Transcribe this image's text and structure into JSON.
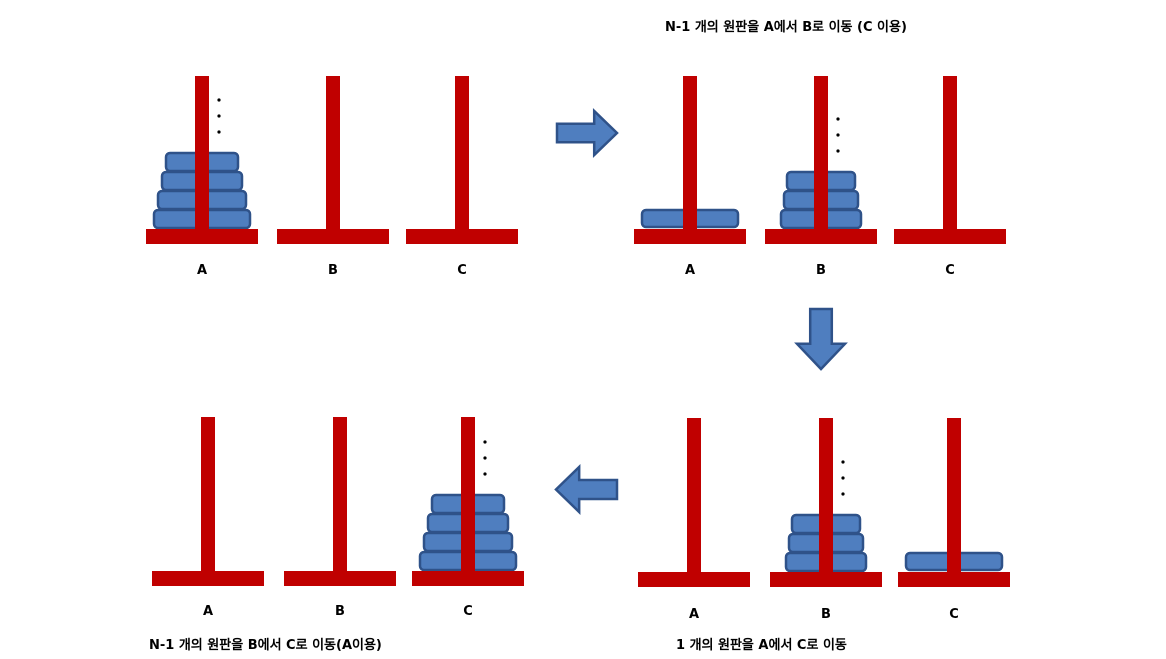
{
  "captions": {
    "top_right": "N-1 개의 원판을 A에서 B로 이동 (C 이용)",
    "bottom_left": "N-1 개의 원판을 B에서 C로 이동(A이용)",
    "bottom_right": "1 개의 원판을 A에서 C로 이동"
  },
  "peg_labels": [
    "A",
    "B",
    "C"
  ],
  "colors": {
    "peg": "#c00000",
    "disk_fill": "#4f7ebf",
    "disk_stroke": "#2f5289",
    "arrow_fill": "#4f7ebf",
    "arrow_stroke": "#2f5289"
  },
  "continuation_mark": "⋮",
  "panels": [
    {
      "id": "initial",
      "stacks": {
        "A": {
          "tower": 4,
          "single": false
        },
        "B": {
          "tower": 0,
          "single": false
        },
        "C": {
          "tower": 0,
          "single": false
        }
      }
    },
    {
      "id": "step1",
      "stacks": {
        "A": {
          "tower": 0,
          "single": true
        },
        "B": {
          "tower": 3,
          "single": false
        },
        "C": {
          "tower": 0,
          "single": false
        }
      }
    },
    {
      "id": "step2",
      "stacks": {
        "A": {
          "tower": 0,
          "single": false
        },
        "B": {
          "tower": 3,
          "single": false
        },
        "C": {
          "tower": 0,
          "single": true
        }
      }
    },
    {
      "id": "step3",
      "stacks": {
        "A": {
          "tower": 0,
          "single": false
        },
        "B": {
          "tower": 0,
          "single": false
        },
        "C": {
          "tower": 4,
          "single": false
        }
      }
    }
  ],
  "arrows": [
    {
      "id": "initial-to-step1",
      "direction": "right"
    },
    {
      "id": "step1-to-step2",
      "direction": "down"
    },
    {
      "id": "step2-to-step3",
      "direction": "left"
    }
  ]
}
